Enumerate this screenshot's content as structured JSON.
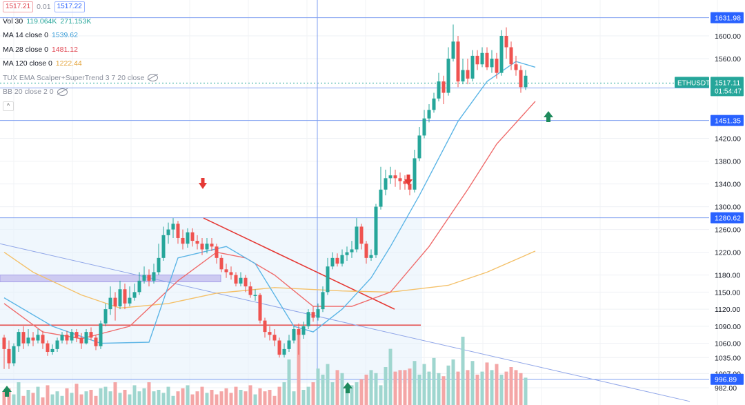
{
  "legend": {
    "bid": "1517.21",
    "spread": "0.01",
    "ask": "1517.22",
    "vol_label": "Vol 30",
    "vol_v1": "119.064K",
    "vol_v2": "271.153K",
    "ma14_label": "MA 14 close 0",
    "ma14_value": "1539.62",
    "ma28_label": "MA 28 close 0",
    "ma28_value": "1481.12",
    "ma120_label": "MA 120 close 0",
    "ma120_value": "1222.44",
    "tux_label": "TUX EMA Scalper+SuperTrend 3 7 20 close",
    "bb_label": "BB 20 close 2 0",
    "collapse_glyph": "^"
  },
  "colors": {
    "up": "#26a69a",
    "down": "#ef5350",
    "ma14": "#5cb5e6",
    "ma28": "#ef6c6c",
    "ma120": "#f4c16a",
    "hline": "#7f9ff0",
    "label_bg": "#2962ff",
    "symbol_bg": "#26a69a",
    "arrow_down": "#e53935",
    "arrow_up": "#1e8a5c"
  },
  "chart_data": {
    "type": "candlestick",
    "symbol": "ETHUSDT",
    "countdown": "01:54:47",
    "last_price": 1517.11,
    "price_ticks": [
      1600.0,
      1560.0,
      1420.0,
      1380.0,
      1340.0,
      1300.0,
      1260.0,
      1220.0,
      1180.0,
      1150.0,
      1120.0,
      1090.0,
      1060.0,
      1035.0,
      1007.0,
      982.0
    ],
    "ylim": [
      965,
      1650
    ],
    "level_labels": [
      1631.98,
      1508.48,
      1451.35,
      1280.62,
      996.89
    ],
    "candles": [
      [
        1070,
        1050,
        1075,
        1015
      ],
      [
        1050,
        1025,
        1065,
        1015
      ],
      [
        1025,
        1055,
        1060,
        1020
      ],
      [
        1055,
        1080,
        1085,
        1045
      ],
      [
        1080,
        1060,
        1090,
        1050
      ],
      [
        1060,
        1070,
        1085,
        1055
      ],
      [
        1070,
        1065,
        1080,
        1055
      ],
      [
        1065,
        1075,
        1085,
        1060
      ],
      [
        1075,
        1060,
        1082,
        1050
      ],
      [
        1060,
        1045,
        1065,
        1038
      ],
      [
        1045,
        1050,
        1058,
        1040
      ],
      [
        1050,
        1065,
        1070,
        1045
      ],
      [
        1065,
        1075,
        1080,
        1060
      ],
      [
        1075,
        1065,
        1082,
        1058
      ],
      [
        1065,
        1080,
        1085,
        1060
      ],
      [
        1080,
        1070,
        1085,
        1062
      ],
      [
        1070,
        1060,
        1078,
        1050
      ],
      [
        1060,
        1080,
        1085,
        1058
      ],
      [
        1080,
        1070,
        1088,
        1065
      ],
      [
        1070,
        1055,
        1075,
        1048
      ],
      [
        1055,
        1095,
        1100,
        1050
      ],
      [
        1095,
        1120,
        1130,
        1090
      ],
      [
        1120,
        1140,
        1160,
        1110
      ],
      [
        1140,
        1125,
        1150,
        1100
      ],
      [
        1125,
        1155,
        1170,
        1120
      ],
      [
        1155,
        1130,
        1165,
        1120
      ],
      [
        1130,
        1140,
        1160,
        1125
      ],
      [
        1140,
        1150,
        1165,
        1135
      ],
      [
        1150,
        1170,
        1185,
        1145
      ],
      [
        1170,
        1180,
        1195,
        1165
      ],
      [
        1180,
        1170,
        1190,
        1160
      ],
      [
        1170,
        1185,
        1200,
        1165
      ],
      [
        1185,
        1210,
        1235,
        1180
      ],
      [
        1210,
        1250,
        1265,
        1205
      ],
      [
        1250,
        1260,
        1272,
        1235
      ],
      [
        1260,
        1270,
        1280,
        1245
      ],
      [
        1270,
        1245,
        1275,
        1235
      ],
      [
        1245,
        1235,
        1260,
        1225
      ],
      [
        1235,
        1255,
        1262,
        1228
      ],
      [
        1255,
        1240,
        1262,
        1230
      ],
      [
        1240,
        1235,
        1250,
        1225
      ],
      [
        1235,
        1225,
        1245,
        1215
      ],
      [
        1225,
        1235,
        1245,
        1218
      ],
      [
        1235,
        1230,
        1245,
        1222
      ],
      [
        1230,
        1210,
        1235,
        1200
      ],
      [
        1210,
        1190,
        1215,
        1185
      ],
      [
        1190,
        1185,
        1200,
        1175
      ],
      [
        1185,
        1180,
        1195,
        1172
      ],
      [
        1180,
        1165,
        1185,
        1160
      ],
      [
        1165,
        1175,
        1185,
        1160
      ],
      [
        1175,
        1160,
        1180,
        1150
      ],
      [
        1160,
        1145,
        1168,
        1140
      ],
      [
        1145,
        1145,
        1155,
        1135
      ],
      [
        1145,
        1100,
        1148,
        1095
      ],
      [
        1100,
        1080,
        1105,
        1070
      ],
      [
        1080,
        1075,
        1090,
        1065
      ],
      [
        1075,
        1065,
        1085,
        1055
      ],
      [
        1065,
        1040,
        1070,
        1035
      ],
      [
        1040,
        1050,
        1060,
        1035
      ],
      [
        1050,
        1065,
        1075,
        1045
      ],
      [
        1065,
        1085,
        1090,
        1060
      ],
      [
        1085,
        1075,
        1095,
        1040
      ],
      [
        1075,
        1090,
        1098,
        1068
      ],
      [
        1090,
        1115,
        1120,
        1085
      ],
      [
        1115,
        1105,
        1125,
        1098
      ],
      [
        1105,
        1120,
        1130,
        1100
      ],
      [
        1120,
        1150,
        1160,
        1115
      ],
      [
        1150,
        1195,
        1210,
        1145
      ],
      [
        1195,
        1210,
        1220,
        1190
      ],
      [
        1210,
        1200,
        1218,
        1195
      ],
      [
        1200,
        1215,
        1225,
        1195
      ],
      [
        1215,
        1220,
        1230,
        1205
      ],
      [
        1220,
        1225,
        1240,
        1210
      ],
      [
        1225,
        1265,
        1280,
        1220
      ],
      [
        1265,
        1235,
        1270,
        1225
      ],
      [
        1235,
        1210,
        1240,
        1200
      ],
      [
        1210,
        1215,
        1225,
        1205
      ],
      [
        1215,
        1300,
        1305,
        1210
      ],
      [
        1300,
        1330,
        1370,
        1295
      ],
      [
        1330,
        1350,
        1365,
        1320
      ],
      [
        1350,
        1355,
        1370,
        1340
      ],
      [
        1355,
        1350,
        1365,
        1335
      ],
      [
        1350,
        1345,
        1360,
        1330
      ],
      [
        1345,
        1340,
        1355,
        1330
      ],
      [
        1340,
        1330,
        1350,
        1320
      ],
      [
        1330,
        1385,
        1400,
        1325
      ],
      [
        1385,
        1425,
        1440,
        1380
      ],
      [
        1425,
        1455,
        1470,
        1420
      ],
      [
        1455,
        1470,
        1480,
        1448
      ],
      [
        1470,
        1490,
        1500,
        1465
      ],
      [
        1490,
        1520,
        1535,
        1485
      ],
      [
        1520,
        1500,
        1530,
        1480
      ],
      [
        1500,
        1560,
        1580,
        1495
      ],
      [
        1560,
        1590,
        1620,
        1555
      ],
      [
        1590,
        1520,
        1600,
        1510
      ],
      [
        1520,
        1540,
        1560,
        1515
      ],
      [
        1540,
        1525,
        1560,
        1515
      ],
      [
        1525,
        1565,
        1575,
        1520
      ],
      [
        1565,
        1550,
        1575,
        1540
      ],
      [
        1550,
        1570,
        1580,
        1545
      ],
      [
        1570,
        1545,
        1580,
        1540
      ],
      [
        1545,
        1560,
        1575,
        1535
      ],
      [
        1560,
        1535,
        1570,
        1525
      ],
      [
        1535,
        1600,
        1610,
        1530
      ],
      [
        1600,
        1580,
        1615,
        1560
      ],
      [
        1580,
        1550,
        1590,
        1540
      ],
      [
        1550,
        1540,
        1565,
        1530
      ],
      [
        1540,
        1510,
        1548,
        1500
      ],
      [
        1510,
        1530,
        1540,
        1505
      ]
    ],
    "ma14": [
      [
        0,
        1140
      ],
      [
        10,
        1090
      ],
      [
        20,
        1060
      ],
      [
        30,
        1062
      ],
      [
        36,
        1210
      ],
      [
        46,
        1230
      ],
      [
        52,
        1200
      ],
      [
        60,
        1090
      ],
      [
        64,
        1080
      ],
      [
        70,
        1120
      ],
      [
        76,
        1175
      ],
      [
        80,
        1230
      ],
      [
        86,
        1320
      ],
      [
        94,
        1450
      ],
      [
        100,
        1520
      ],
      [
        106,
        1555
      ],
      [
        110,
        1545
      ]
    ],
    "ma28": [
      [
        0,
        1130
      ],
      [
        8,
        1080
      ],
      [
        16,
        1068
      ],
      [
        26,
        1090
      ],
      [
        36,
        1170
      ],
      [
        44,
        1220
      ],
      [
        50,
        1210
      ],
      [
        56,
        1180
      ],
      [
        64,
        1125
      ],
      [
        72,
        1125
      ],
      [
        80,
        1150
      ],
      [
        88,
        1230
      ],
      [
        96,
        1330
      ],
      [
        102,
        1410
      ],
      [
        110,
        1485
      ]
    ],
    "ma120": [
      [
        0,
        1220
      ],
      [
        6,
        1185
      ],
      [
        16,
        1145
      ],
      [
        24,
        1122
      ],
      [
        34,
        1130
      ],
      [
        44,
        1148
      ],
      [
        56,
        1158
      ],
      [
        70,
        1152
      ],
      [
        80,
        1150
      ],
      [
        92,
        1162
      ],
      [
        100,
        1185
      ],
      [
        110,
        1222
      ]
    ],
    "volume": [
      18,
      22,
      14,
      30,
      12,
      20,
      16,
      24,
      10,
      26,
      14,
      18,
      12,
      22,
      16,
      28,
      14,
      18,
      20,
      12,
      22,
      24,
      18,
      30,
      16,
      20,
      14,
      26,
      18,
      22,
      30,
      18,
      20,
      16,
      24,
      12,
      18,
      22,
      26,
      14,
      18,
      24,
      16,
      20,
      14,
      18,
      22,
      16,
      24,
      20,
      18,
      26,
      14,
      22,
      18,
      20,
      12,
      24,
      30,
      60,
      18,
      95,
      20,
      24,
      30,
      48,
      40,
      54,
      30,
      46,
      42,
      22,
      26,
      30,
      34,
      40,
      46,
      42,
      26,
      50,
      74,
      44,
      46,
      46,
      48,
      58,
      40,
      54,
      44,
      62,
      42,
      38,
      52,
      60,
      44,
      90,
      46,
      58,
      40,
      44,
      56,
      46,
      54,
      40,
      44,
      50,
      46,
      42,
      36,
      40,
      34
    ]
  }
}
